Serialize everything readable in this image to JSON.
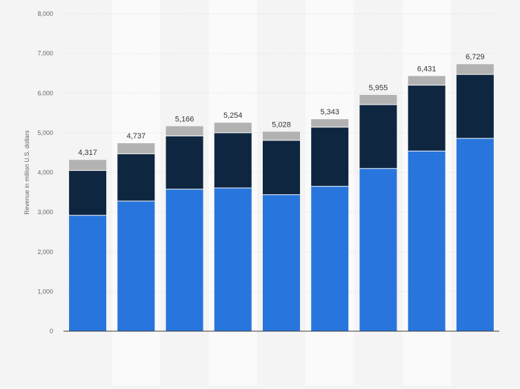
{
  "colors": {
    "background": "#f4f4f4",
    "band": "#fafafa",
    "grid": "#dddddd",
    "seg_bottom": "#2876dd",
    "seg_middle": "#0f2640",
    "seg_top": "#b2b2b2"
  },
  "chart_data": {
    "type": "bar",
    "stacked": true,
    "title": "",
    "xlabel": "",
    "ylabel": "Revenue in million U.S. dollars",
    "ylim": [
      0,
      8000
    ],
    "yticks": [
      0,
      1000,
      2000,
      3000,
      4000,
      5000,
      6000,
      7000,
      8000
    ],
    "ytick_labels": [
      "0",
      "1,000",
      "2,000",
      "3,000",
      "4,000",
      "5,000",
      "6,000",
      "7,000",
      "8,000"
    ],
    "grid": true,
    "legend": "none",
    "categories": [
      "",
      "",
      "",
      "",
      "",
      "",
      "",
      "",
      ""
    ],
    "series": [
      {
        "color": "#2876dd",
        "values": [
          2920,
          3280,
          3580,
          3610,
          3440,
          3650,
          4100,
          4540,
          4860
        ]
      },
      {
        "color": "#0f2640",
        "values": [
          1130,
          1190,
          1340,
          1390,
          1370,
          1490,
          1610,
          1660,
          1610
        ]
      },
      {
        "color": "#b2b2b2",
        "values": [
          267,
          267,
          246,
          254,
          218,
          203,
          245,
          231,
          259
        ]
      }
    ],
    "totals": [
      4317,
      4737,
      5166,
      5254,
      5028,
      5343,
      5955,
      6431,
      6729
    ],
    "total_labels": [
      "4,317",
      "4,737",
      "5,166",
      "5,254",
      "5,028",
      "5,343",
      "5,955",
      "6,431",
      "6,729"
    ]
  }
}
